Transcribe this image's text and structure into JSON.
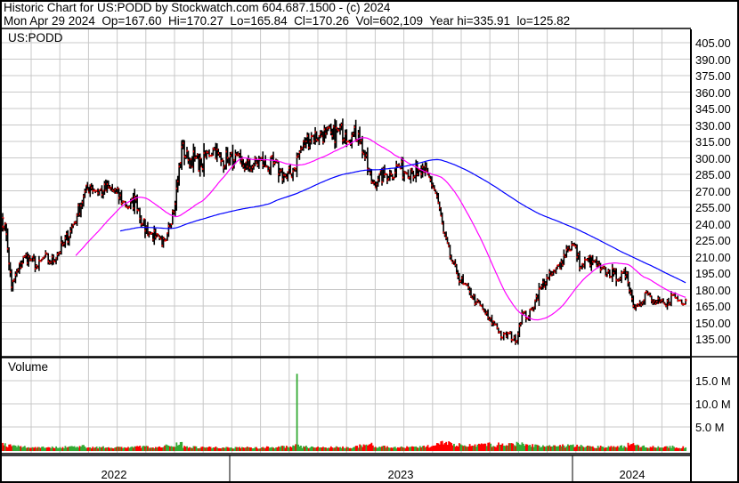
{
  "header": {
    "title": "Historic Chart for US:PODD by Stockwatch.com 604.687.1500 - (c) 2024",
    "quote": "Mon Apr 29 2024  Op=167.60  Hi=170.27  Lo=165.84  Cl=170.26  Vol=602,109  Year hi=335.91  lo=125.82"
  },
  "chart_data": {
    "type": "bar",
    "symbol": "US:PODD",
    "volume_label": "Volume",
    "price_ticks": [
      "405.00",
      "390.00",
      "375.00",
      "360.00",
      "345.00",
      "330.00",
      "315.00",
      "300.00",
      "285.00",
      "270.00",
      "255.00",
      "240.00",
      "225.00",
      "210.00",
      "195.00",
      "180.00",
      "165.00",
      "150.00",
      "135.00"
    ],
    "ylim": [
      125,
      410
    ],
    "volume_ticks": [
      "15.0 M",
      "10.0 M",
      "5.0 M"
    ],
    "year_labels": [
      "2022",
      "2023",
      "2024"
    ],
    "grid": true,
    "series_colors": {
      "bars": "#000000",
      "close_tick": "#ff0000",
      "ma_short": "#ff00ff",
      "ma_long": "#0000ff",
      "vol_up": "#33aa33",
      "vol_down": "#ff0000"
    },
    "weekly_close": [
      240,
      182,
      198,
      210,
      207,
      200,
      210,
      205,
      212,
      222,
      233,
      248,
      265,
      275,
      270,
      270,
      272,
      268,
      260,
      255,
      262,
      240,
      232,
      228,
      220,
      238,
      258,
      310,
      298,
      300,
      292,
      305,
      308,
      297,
      300,
      298,
      295,
      292,
      293,
      298,
      292,
      295,
      288,
      282,
      288,
      305,
      315,
      320,
      320,
      322,
      320,
      325,
      322,
      320,
      322,
      300,
      278,
      280,
      285,
      285,
      293,
      287,
      290,
      285,
      287,
      280,
      265,
      232,
      210,
      195,
      185,
      178,
      168,
      162,
      152,
      148,
      136,
      140,
      132,
      158,
      155,
      170,
      183,
      190,
      196,
      205,
      218,
      220,
      200,
      207,
      205,
      198,
      195,
      195,
      190,
      195,
      165,
      168,
      178,
      168,
      168,
      165,
      175,
      170,
      170.26
    ],
    "weekly_avg_volume_m": [
      1.2,
      1.0,
      0.8,
      0.7,
      0.6,
      0.6,
      0.7,
      0.6,
      0.6,
      0.6,
      0.7,
      0.8,
      0.8,
      0.7,
      0.6,
      0.6,
      0.6,
      0.6,
      0.6,
      0.6,
      0.6,
      0.8,
      0.7,
      0.6,
      0.6,
      0.9,
      1.0,
      1.4,
      0.8,
      0.7,
      0.6,
      0.6,
      0.6,
      0.6,
      0.5,
      0.5,
      0.6,
      0.6,
      0.5,
      0.5,
      0.6,
      0.6,
      0.6,
      0.7,
      0.8,
      1.0,
      0.7,
      0.6,
      0.6,
      0.6,
      0.6,
      0.6,
      0.6,
      0.6,
      0.7,
      1.0,
      1.2,
      0.8,
      0.7,
      0.6,
      0.6,
      0.6,
      0.6,
      0.6,
      0.7,
      0.8,
      1.3,
      1.8,
      1.5,
      1.2,
      1.1,
      1.0,
      1.2,
      1.1,
      1.2,
      1.0,
      1.3,
      1.1,
      1.2,
      1.4,
      1.1,
      1.0,
      0.9,
      0.8,
      0.8,
      0.8,
      0.9,
      0.9,
      1.1,
      0.8,
      0.7,
      0.7,
      0.7,
      0.7,
      0.7,
      0.8,
      1.3,
      0.9,
      0.8,
      0.7,
      0.7,
      0.6,
      0.7,
      0.6,
      0.6
    ],
    "volume_spike": {
      "week": 45,
      "value_m": 16.5
    }
  }
}
